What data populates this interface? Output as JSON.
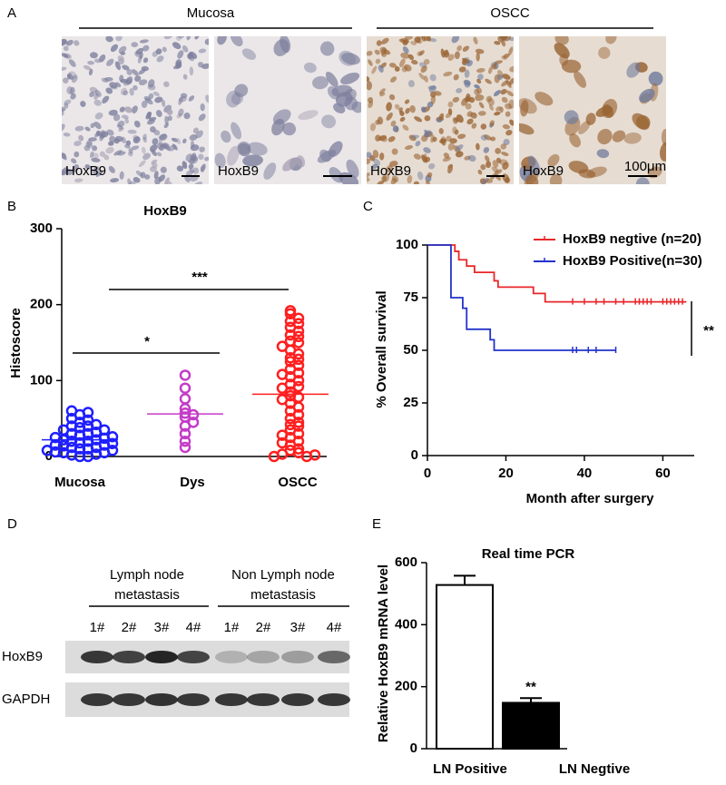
{
  "panel_a": {
    "letter": "A",
    "groups": [
      "Mucosa",
      "OSCC"
    ],
    "image_labels": [
      "HoxB9",
      "HoxB9",
      "HoxB9",
      "HoxB9"
    ],
    "scale_label": "100μm"
  },
  "chart_data": [
    {
      "panel": "B",
      "type": "dot",
      "title": "HoxB9",
      "ylabel": "Histoscore",
      "categories": [
        "Mucosa",
        "Dys",
        "OSCC"
      ],
      "colors": [
        "#1f1fff",
        "#c43cc8",
        "#ff1f1f"
      ],
      "values": [
        [
          0,
          0,
          2,
          3,
          5,
          5,
          6,
          8,
          8,
          10,
          10,
          12,
          12,
          14,
          15,
          15,
          17,
          18,
          20,
          20,
          22,
          22,
          24,
          25,
          26,
          28,
          30,
          30,
          32,
          35,
          35,
          38,
          40,
          40,
          42,
          45,
          48,
          50,
          55,
          58,
          60
        ],
        [
          107,
          90,
          76,
          63,
          57,
          55,
          52,
          45,
          40,
          30,
          20,
          12
        ],
        [
          192,
          188,
          182,
          178,
          175,
          170,
          165,
          160,
          158,
          152,
          150,
          145,
          140,
          135,
          130,
          128,
          125,
          120,
          115,
          110,
          108,
          105,
          100,
          95,
          92,
          90,
          85,
          80,
          78,
          75,
          70,
          65,
          60,
          55,
          50,
          45,
          42,
          40,
          35,
          30,
          28,
          25,
          20,
          18,
          15,
          10,
          8,
          5,
          3,
          0,
          0,
          2
        ]
      ],
      "means": [
        22,
        56,
        82
      ],
      "annotations": [
        "***",
        "*"
      ],
      "ylim": [
        0,
        300
      ],
      "yticks": [
        0,
        100,
        200,
        300
      ]
    },
    {
      "panel": "C",
      "type": "line",
      "xlabel": "Month after surgery",
      "ylabel": "% Overall survival",
      "series": [
        {
          "name": "HoxB9 negtive (n=20)",
          "color": "#e8272a",
          "x": [
            0,
            7,
            7,
            8,
            8,
            10,
            10,
            12,
            12,
            17,
            17,
            18,
            18,
            27,
            27,
            30,
            30,
            66
          ],
          "values": [
            100,
            100,
            97,
            97,
            93,
            93,
            90,
            90,
            87,
            87,
            83,
            83,
            80,
            80,
            77,
            77,
            73,
            73
          ],
          "censored_x": [
            37,
            40,
            43,
            45,
            48,
            50,
            53,
            54,
            55,
            56,
            57,
            60,
            61,
            62,
            63,
            64,
            65
          ],
          "censored_values": [
            73,
            73,
            73,
            73,
            73,
            73,
            73,
            73,
            73,
            73,
            73,
            73,
            73,
            73,
            73,
            73,
            73
          ]
        },
        {
          "name": "HoxB9 Positive(n=30)",
          "color": "#2233cc",
          "x": [
            0,
            6,
            6,
            9,
            9,
            10,
            10,
            16,
            16,
            17,
            17,
            48
          ],
          "values": [
            100,
            100,
            75,
            75,
            70,
            70,
            60,
            60,
            55,
            55,
            50,
            50
          ],
          "censored_x": [
            37,
            38,
            41,
            43,
            48
          ],
          "censored_values": [
            50,
            50,
            50,
            50,
            50
          ]
        }
      ],
      "annotation": "**",
      "legend": "top-right",
      "xlim": [
        0,
        68
      ],
      "xticks": [
        0,
        20,
        40,
        60
      ],
      "ylim": [
        0,
        100
      ],
      "yticks": [
        0,
        25,
        50,
        75,
        100
      ]
    },
    {
      "panel": "E",
      "type": "bar",
      "title": "Real time PCR",
      "ylabel": "Relative HoxB9 mRNA level",
      "categories": [
        "LN Positive",
        "LN Negtive"
      ],
      "values": [
        528,
        148
      ],
      "errors": [
        30,
        15
      ],
      "colors": [
        "#ffffff",
        "#000000"
      ],
      "annotation": "**",
      "ylim": [
        0,
        600
      ],
      "yticks": [
        0,
        200,
        400,
        600
      ]
    }
  ],
  "panel_d": {
    "letter": "D",
    "groups": [
      {
        "lines": [
          "Lymph node",
          "metastasis"
        ],
        "lanes": [
          "1#",
          "2#",
          "3#",
          "4#"
        ]
      },
      {
        "lines": [
          "Non Lymph node",
          "metastasis"
        ],
        "lanes": [
          "1#",
          "2#",
          "3#",
          "4#"
        ]
      }
    ],
    "rows": [
      "HoxB9",
      "GAPDH"
    ]
  }
}
